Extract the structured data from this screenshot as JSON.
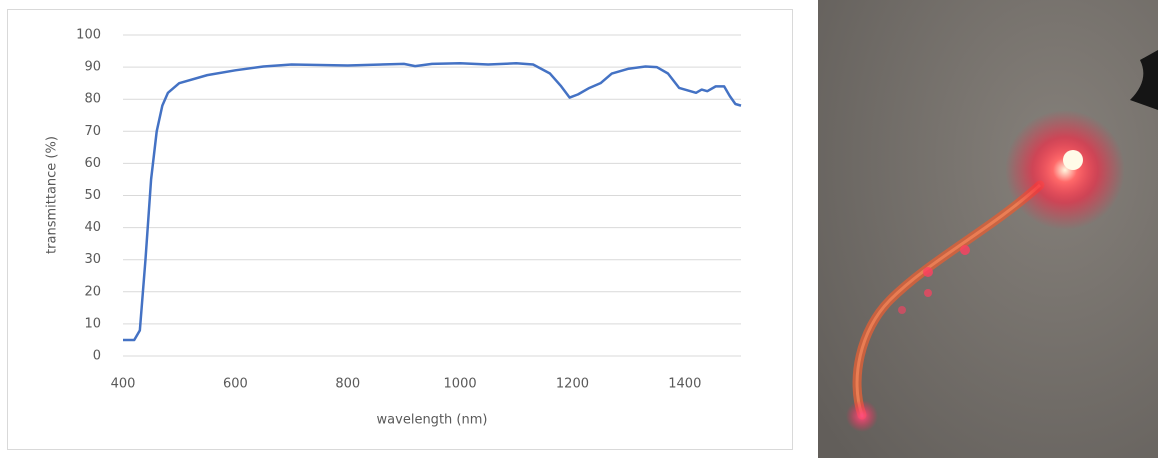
{
  "chart_data": {
    "type": "line",
    "xlabel": "wavelength (nm)",
    "ylabel": "transmittance (%)",
    "x": [
      400,
      420,
      430,
      440,
      450,
      460,
      470,
      480,
      500,
      550,
      600,
      650,
      700,
      800,
      900,
      920,
      950,
      1000,
      1050,
      1100,
      1130,
      1160,
      1180,
      1195,
      1210,
      1230,
      1250,
      1270,
      1300,
      1330,
      1350,
      1370,
      1390,
      1410,
      1420,
      1430,
      1440,
      1455,
      1470,
      1480,
      1490,
      1500
    ],
    "values": [
      5,
      5,
      8,
      30,
      55,
      70,
      78,
      82,
      85,
      87.5,
      89,
      90.2,
      90.8,
      90.5,
      91,
      90.3,
      91,
      91.2,
      90.8,
      91.2,
      90.8,
      88,
      84,
      80.5,
      81.5,
      83.5,
      85,
      88,
      89.5,
      90.2,
      90,
      88,
      83.5,
      82.5,
      82,
      83,
      82.5,
      84,
      84,
      81,
      78.5,
      78
    ],
    "color": "#4472c4",
    "xlim": [
      400,
      1500
    ],
    "xticks": [
      400,
      600,
      800,
      1000,
      1200,
      1400
    ],
    "ylim": [
      0,
      100
    ],
    "yticks": [
      0,
      10,
      20,
      30,
      40,
      50,
      60,
      70,
      80,
      90,
      100
    ],
    "grid": true
  }
}
